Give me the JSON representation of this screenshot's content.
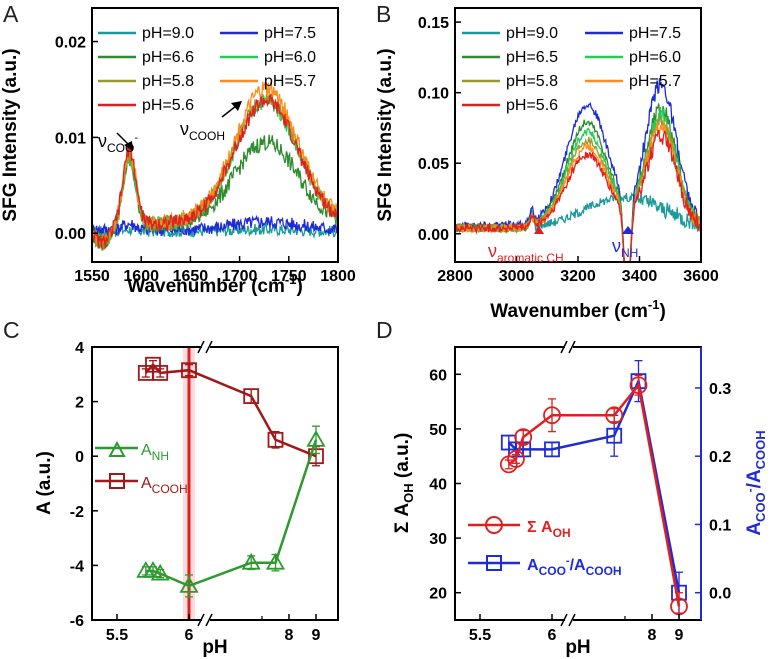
{
  "chart_data": [
    {
      "panel": "A",
      "type": "line",
      "xlabel": "Wavenumber (cm",
      "xlabel_sup": "-1",
      "xlabel_end": ")",
      "ylabel": "SFG Intensity (a.u.)",
      "xlim": [
        1550,
        1800
      ],
      "ylim": [
        -0.003,
        0.0235
      ],
      "xticks": [
        "1550",
        "1600",
        "1650",
        "1700",
        "1750",
        "1800"
      ],
      "yticks": [
        "0.00",
        "0.01",
        "0.02"
      ],
      "series": [
        {
          "name": "pH=9.0",
          "color": "#1a9a9a"
        },
        {
          "name": "pH=7.5",
          "color": "#1f2bd6"
        },
        {
          "name": "pH=6.6",
          "color": "#2e8b2e"
        },
        {
          "name": "pH=6.0",
          "color": "#22cc55"
        },
        {
          "name": "pH=5.8",
          "color": "#9a9a2a"
        },
        {
          "name": "pH=5.7",
          "color": "#ff8c1a"
        },
        {
          "name": "pH=5.6",
          "color": "#e02020"
        }
      ],
      "annotations": [
        {
          "base": "ν",
          "sub": "COO",
          "sup": "-"
        },
        {
          "base": "ν",
          "sub": "COOH",
          "sup": ""
        }
      ]
    },
    {
      "panel": "B",
      "type": "line",
      "xlabel": "Wavenumber (cm",
      "xlabel_sup": "-1",
      "xlabel_end": ")",
      "ylabel": "SFG Intensity (a.u.)",
      "xlim": [
        2800,
        3600
      ],
      "ylim": [
        -0.02,
        0.16
      ],
      "xticks": [
        "2800",
        "3000",
        "3200",
        "3400",
        "3600"
      ],
      "yticks": [
        "0.00",
        "0.05",
        "0.10",
        "0.15"
      ],
      "series": [
        {
          "name": "pH=9.0",
          "color": "#1a9a9a"
        },
        {
          "name": "pH=7.5",
          "color": "#1f2bd6"
        },
        {
          "name": "pH=6.5",
          "color": "#2e8b2e"
        },
        {
          "name": "pH=6.0",
          "color": "#22cc55"
        },
        {
          "name": "pH=5.8",
          "color": "#9a9a2a"
        },
        {
          "name": "pH=5.7",
          "color": "#ff8c1a"
        },
        {
          "name": "pH=5.6",
          "color": "#e02020"
        }
      ],
      "annotations": [
        {
          "base": "ν",
          "sub": "aromatic CH",
          "color": "#e02020"
        },
        {
          "base": "ν",
          "sub": "NH",
          "color": "#1f2bd6"
        }
      ]
    },
    {
      "panel": "C",
      "type": "scatter",
      "xlabel": "pH",
      "ylabel": "A (a.u.)",
      "ylim": [
        -6,
        4
      ],
      "xticks": [
        "5.5",
        "6",
        "8",
        "9"
      ],
      "yticks": [
        "-6",
        "-4",
        "-2",
        "0",
        "2",
        "4"
      ],
      "series": [
        {
          "name": "A",
          "sub": "NH",
          "color": "#2e9a2e",
          "x": [
            5.7,
            5.75,
            5.8,
            6.0,
            6.6,
            7.5,
            9.0
          ],
          "y": [
            -4.2,
            -4.2,
            -4.3,
            -4.75,
            -3.9,
            -3.9,
            0.6
          ],
          "err": [
            0.15,
            0.15,
            0.15,
            0.4,
            0.25,
            0.3,
            0.5
          ]
        },
        {
          "name": "A",
          "sub": "COOH",
          "color": "#a01818",
          "x": [
            5.7,
            5.75,
            5.8,
            6.0,
            6.6,
            7.5,
            9.0
          ],
          "y": [
            3.05,
            3.35,
            3.05,
            3.15,
            2.2,
            0.6,
            0.0
          ],
          "err": [
            0.15,
            0.15,
            0.15,
            0.2,
            0.25,
            0.3,
            0.35
          ]
        }
      ]
    },
    {
      "panel": "D",
      "type": "scatter",
      "xlabel": "pH",
      "ylabel": "Σ A",
      "ylabel_sub": "OH",
      "ylabel_end": " (a.u.)",
      "y2label": "A",
      "y2label_sub1": "COO",
      "y2label_sup": "-",
      "y2label_mid": "/A",
      "y2label_sub2": "COOH",
      "ylim": [
        15,
        65
      ],
      "y2lim": [
        -0.04,
        0.36
      ],
      "xticks": [
        "5.5",
        "6",
        "8",
        "9"
      ],
      "yticks": [
        "20",
        "30",
        "40",
        "50",
        "60"
      ],
      "y2ticks": [
        "0.0",
        "0.1",
        "0.2",
        "0.3"
      ],
      "series": [
        {
          "name": "Σ A",
          "sub": "OH",
          "color": "#e02020",
          "axis": "left",
          "x": [
            5.7,
            5.75,
            5.8,
            6.0,
            6.6,
            7.5,
            9.0
          ],
          "y": [
            43.5,
            44.5,
            48.5,
            52.5,
            52.5,
            58.0,
            17.5
          ],
          "err": [
            0.8,
            0.8,
            1.2,
            3.0,
            1.2,
            1.8,
            2.5
          ]
        },
        {
          "name": "A",
          "sub": "COO",
          "sup": "-",
          "mid": "/A",
          "sub2": "COOH",
          "color": "#1f2bd6",
          "axis": "right",
          "x": [
            5.7,
            5.75,
            5.8,
            6.0,
            6.6,
            7.5,
            9.0
          ],
          "y": [
            0.22,
            0.21,
            0.21,
            0.21,
            0.23,
            0.31,
            0.0
          ],
          "err": [
            0.01,
            0.01,
            0.01,
            0.01,
            0.03,
            0.03,
            0.03
          ]
        }
      ]
    }
  ]
}
